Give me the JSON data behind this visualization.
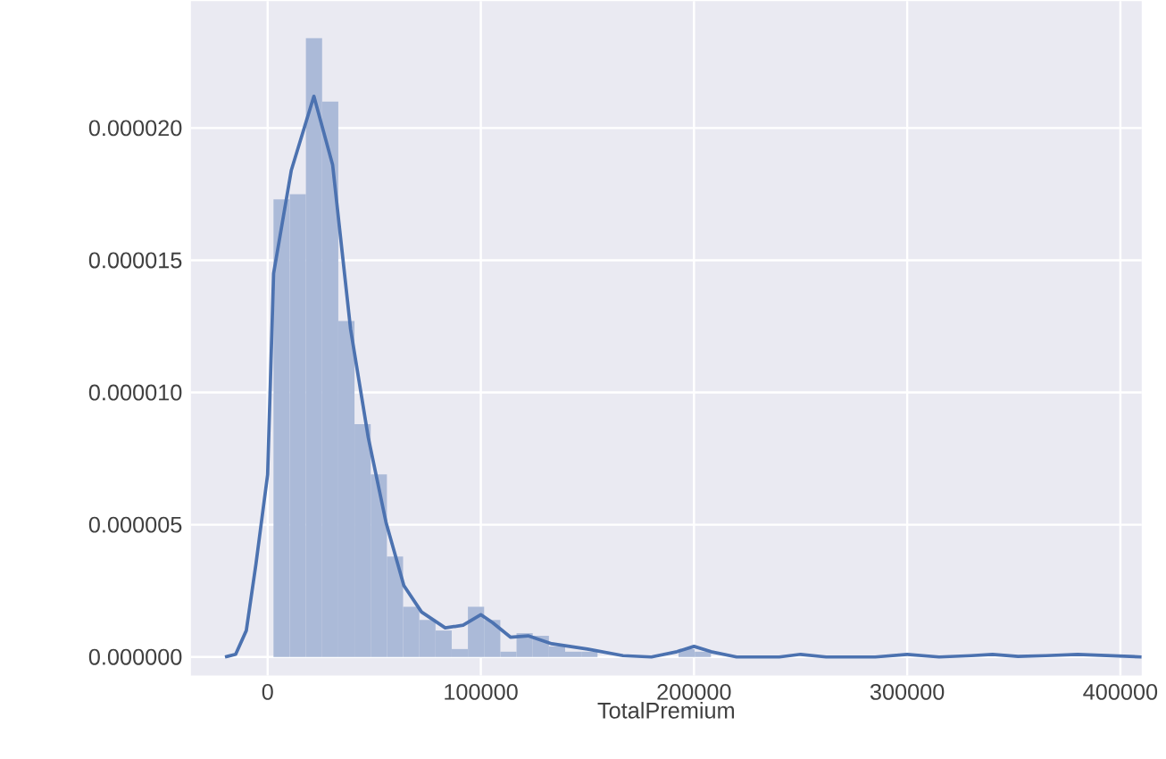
{
  "chart_data": {
    "type": "histogram",
    "xlabel": "TotalPremium",
    "xlim": [
      -36000,
      410000
    ],
    "ylim": [
      -7e-07,
      2.48e-05
    ],
    "xticks": [
      0,
      100000,
      200000,
      300000,
      400000
    ],
    "yticks": [
      {
        "value": 0,
        "label": "0.000000"
      },
      {
        "value": 5e-06,
        "label": "0.000005"
      },
      {
        "value": 1e-05,
        "label": "0.000010"
      },
      {
        "value": 1.5e-05,
        "label": "0.000015"
      },
      {
        "value": 2e-05,
        "label": "0.000020"
      }
    ],
    "grid": true,
    "series": [
      {
        "type": "histogram",
        "color": "#abbad8",
        "bins": [
          2750,
          10350,
          17950,
          25550,
          33150,
          40750,
          48350,
          55950,
          63550,
          71150,
          78750,
          86350,
          93950,
          101550,
          109150,
          116750,
          124350,
          131950,
          139550,
          147150,
          154750,
          162350,
          169950,
          177550,
          185150,
          192750,
          200350,
          207950,
          215550,
          223150,
          230750,
          238350,
          245950,
          253550,
          261150,
          268750,
          276350,
          283950,
          291550,
          299150,
          306750,
          314350,
          321950,
          329550,
          337150,
          344750,
          352350,
          359950,
          367550,
          375150,
          382750,
          390350,
          397950
        ],
        "values": [
          1.73e-05,
          1.75e-05,
          2.34e-05,
          2.1e-05,
          1.27e-05,
          8.8e-06,
          6.9e-06,
          3.8e-06,
          1.9e-06,
          1.4e-06,
          1e-06,
          3e-07,
          1.9e-06,
          1.4e-06,
          2e-07,
          9e-07,
          8e-07,
          4e-07,
          2e-07,
          2e-07,
          0,
          0,
          0,
          0,
          0,
          3e-07,
          2e-07,
          0,
          0,
          0,
          0,
          0,
          0,
          0,
          0,
          0,
          0,
          0,
          0,
          0,
          0,
          0,
          0,
          0,
          0,
          0,
          0,
          0,
          0,
          0,
          0,
          0
        ]
      },
      {
        "type": "line",
        "color": "#4c72b0",
        "x": [
          -20000,
          -15000,
          -10000,
          -5500,
          0,
          2800,
          11100,
          21700,
          30500,
          38900,
          47200,
          55500,
          63900,
          72200,
          83300,
          91700,
          100000,
          105500,
          113900,
          122200,
          133300,
          150000,
          166700,
          180000,
          192000,
          200000,
          208000,
          220000,
          240000,
          250000,
          262000,
          285000,
          300000,
          315000,
          330000,
          340000,
          352000,
          365000,
          380000,
          395000,
          410000
        ],
        "values": [
          0,
          1e-07,
          1e-06,
          3.5e-06,
          6.9e-06,
          1.45e-05,
          1.84e-05,
          2.12e-05,
          1.86e-05,
          1.24e-05,
          8.3e-06,
          5.1e-06,
          2.7e-06,
          1.7e-06,
          1.1e-06,
          1.2e-06,
          1.6e-06,
          1.3e-06,
          7.5e-07,
          8e-07,
          5e-07,
          3e-07,
          5e-08,
          0,
          2e-07,
          4e-07,
          2e-07,
          0,
          0,
          1e-07,
          0,
          0,
          1e-07,
          0,
          5e-08,
          1e-07,
          2e-08,
          5e-08,
          1e-07,
          5e-08,
          0
        ]
      }
    ]
  }
}
